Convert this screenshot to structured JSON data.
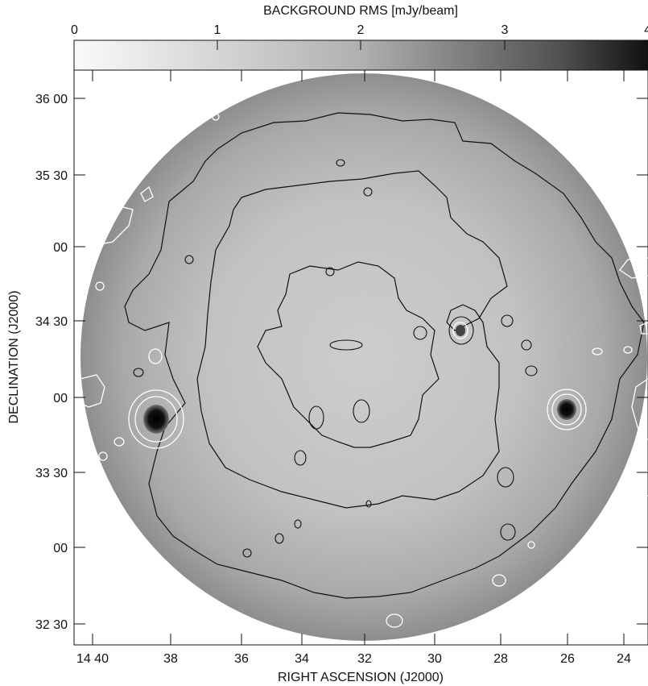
{
  "colorbar": {
    "title": "BACKGROUND RMS [mJy/beam]",
    "ticks": [
      "0",
      "1",
      "2",
      "3",
      "4"
    ],
    "range": [
      0,
      4
    ],
    "colors": {
      "low": "#fafafa",
      "high": "#111111"
    }
  },
  "axes": {
    "xlabel": "RIGHT ASCENSION (J2000)",
    "ylabel": "DECLINATION (J2000)",
    "x_ticks": [
      "14 40",
      "38",
      "36",
      "34",
      "32",
      "30",
      "28",
      "26",
      "24"
    ],
    "y_ticks": [
      "36 00",
      "35 30",
      "00",
      "34 30",
      "00",
      "33 30",
      "00",
      "32 30"
    ]
  },
  "map": {
    "disk_color": "#b8b8b8",
    "edge_color": "#8c8c8c",
    "inner_color": "#cacaca",
    "contour_dark": "#111111",
    "contour_light": "#ffffff",
    "source_color": "#050505"
  }
}
